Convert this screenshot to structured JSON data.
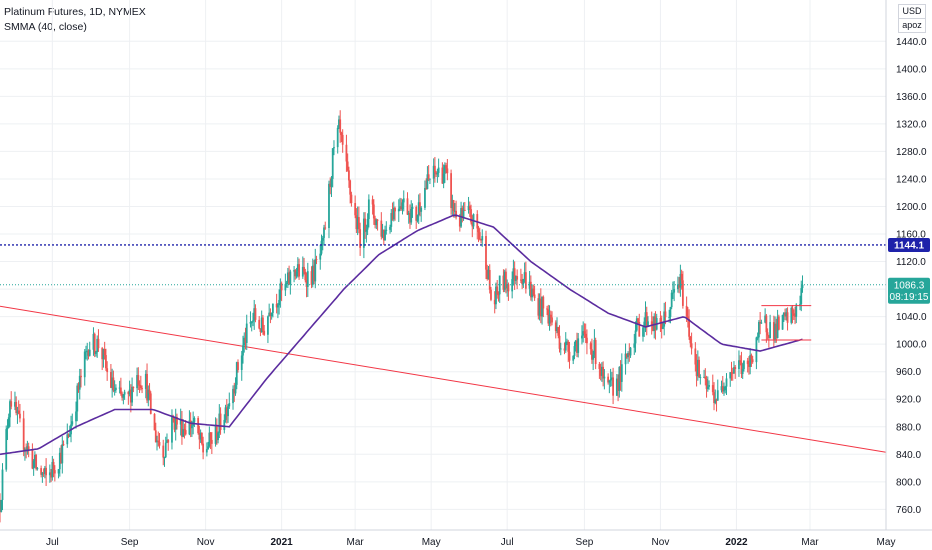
{
  "legend": {
    "symbol": "Platinum Futures, 1D, NYMEX",
    "indicator": "SMMA (40, close)"
  },
  "scale_buttons": {
    "currency": "USD",
    "mode": "apoz"
  },
  "colors": {
    "up": "#26a69a",
    "down": "#ef5350",
    "smma": "#5b2c9f",
    "trendline": "#f23645",
    "level_line": "#1e22aa",
    "last_price_line": "#26a69a",
    "grid": "#eef0f3"
  },
  "chart_data": {
    "type": "candlestick",
    "title": "Platinum Futures, 1D, NYMEX",
    "indicator_name": "SMMA (40, close)",
    "ylim": [
      730,
      1500
    ],
    "y_ticks": [
      760,
      800,
      840,
      880,
      920,
      960,
      1000,
      1040,
      1080,
      1120,
      1160,
      1200,
      1240,
      1280,
      1320,
      1360,
      1400,
      1440
    ],
    "x_tick_labels": [
      "Jul",
      "Sep",
      "Nov",
      "2021",
      "Mar",
      "May",
      "Jul",
      "Sep",
      "Nov",
      "2022",
      "Mar",
      "May"
    ],
    "x_tick_months": [
      "2020-07",
      "2020-09",
      "2020-11",
      "2021-01",
      "2021-03",
      "2021-05",
      "2021-07",
      "2021-09",
      "2021-11",
      "2022-01",
      "2022-03",
      "2022-05"
    ],
    "x_range": [
      "2020-05-20",
      "2022-05-01"
    ],
    "price_path": [
      [
        "2020-05-20",
        770
      ],
      [
        "2020-05-28",
        925
      ],
      [
        "2020-06-08",
        860
      ],
      [
        "2020-06-18",
        820
      ],
      [
        "2020-06-26",
        805
      ],
      [
        "2020-07-05",
        830
      ],
      [
        "2020-07-13",
        860
      ],
      [
        "2020-07-22",
        935
      ],
      [
        "2020-07-30",
        1000
      ],
      [
        "2020-08-08",
        1000
      ],
      [
        "2020-08-15",
        950
      ],
      [
        "2020-08-22",
        925
      ],
      [
        "2020-08-30",
        915
      ],
      [
        "2020-09-06",
        955
      ],
      [
        "2020-09-14",
        945
      ],
      [
        "2020-09-21",
        870
      ],
      [
        "2020-09-28",
        845
      ],
      [
        "2020-10-06",
        890
      ],
      [
        "2020-10-14",
        880
      ],
      [
        "2020-10-22",
        885
      ],
      [
        "2020-10-30",
        845
      ],
      [
        "2020-11-08",
        865
      ],
      [
        "2020-11-16",
        900
      ],
      [
        "2020-11-24",
        945
      ],
      [
        "2020-12-03",
        1010
      ],
      [
        "2020-12-10",
        1040
      ],
      [
        "2020-12-17",
        1020
      ],
      [
        "2020-12-24",
        1060
      ],
      [
        "2021-01-04",
        1080
      ],
      [
        "2021-01-11",
        1110
      ],
      [
        "2021-01-18",
        1100
      ],
      [
        "2021-01-26",
        1100
      ],
      [
        "2021-02-03",
        1140
      ],
      [
        "2021-02-11",
        1270
      ],
      [
        "2021-02-16",
        1310
      ],
      [
        "2021-02-22",
        1250
      ],
      [
        "2021-02-28",
        1190
      ],
      [
        "2021-03-06",
        1150
      ],
      [
        "2021-03-12",
        1200
      ],
      [
        "2021-03-18",
        1180
      ],
      [
        "2021-03-24",
        1160
      ],
      [
        "2021-03-30",
        1190
      ],
      [
        "2021-04-06",
        1210
      ],
      [
        "2021-04-12",
        1200
      ],
      [
        "2021-04-18",
        1180
      ],
      [
        "2021-04-24",
        1220
      ],
      [
        "2021-04-30",
        1240
      ],
      [
        "2021-05-06",
        1250
      ],
      [
        "2021-05-12",
        1250
      ],
      [
        "2021-05-18",
        1200
      ],
      [
        "2021-05-24",
        1180
      ],
      [
        "2021-05-30",
        1190
      ],
      [
        "2021-06-06",
        1170
      ],
      [
        "2021-06-13",
        1140
      ],
      [
        "2021-06-19",
        1050
      ],
      [
        "2021-06-26",
        1090
      ],
      [
        "2021-07-03",
        1090
      ],
      [
        "2021-07-10",
        1110
      ],
      [
        "2021-07-17",
        1090
      ],
      [
        "2021-07-24",
        1060
      ],
      [
        "2021-07-31",
        1050
      ],
      [
        "2021-08-07",
        1030
      ],
      [
        "2021-08-14",
        1000
      ],
      [
        "2021-08-21",
        990
      ],
      [
        "2021-08-28",
        1010
      ],
      [
        "2021-09-04",
        1000
      ],
      [
        "2021-09-11",
        985
      ],
      [
        "2021-09-18",
        930
      ],
      [
        "2021-09-25",
        940
      ],
      [
        "2021-10-02",
        960
      ],
      [
        "2021-10-09",
        1010
      ],
      [
        "2021-10-16",
        1030
      ],
      [
        "2021-10-23",
        1040
      ],
      [
        "2021-10-30",
        1020
      ],
      [
        "2021-11-06",
        1040
      ],
      [
        "2021-11-13",
        1080
      ],
      [
        "2021-11-17",
        1090
      ],
      [
        "2021-11-22",
        1040
      ],
      [
        "2021-11-28",
        980
      ],
      [
        "2021-12-05",
        940
      ],
      [
        "2021-12-12",
        930
      ],
      [
        "2021-12-18",
        920
      ],
      [
        "2021-12-24",
        960
      ],
      [
        "2022-01-03",
        970
      ],
      [
        "2022-01-10",
        960
      ],
      [
        "2022-01-17",
        1010
      ],
      [
        "2022-01-24",
        1030
      ],
      [
        "2022-01-31",
        1020
      ],
      [
        "2022-02-07",
        1030
      ],
      [
        "2022-02-14",
        1040
      ],
      [
        "2022-02-21",
        1060
      ],
      [
        "2022-02-23",
        1086.3
      ]
    ],
    "smma_path": [
      [
        "2020-05-20",
        840
      ],
      [
        "2020-06-20",
        848
      ],
      [
        "2020-07-20",
        880
      ],
      [
        "2020-08-20",
        905
      ],
      [
        "2020-09-20",
        905
      ],
      [
        "2020-10-20",
        885
      ],
      [
        "2020-11-20",
        880
      ],
      [
        "2020-12-20",
        950
      ],
      [
        "2021-01-20",
        1015
      ],
      [
        "2021-02-20",
        1080
      ],
      [
        "2021-03-20",
        1130
      ],
      [
        "2021-04-20",
        1165
      ],
      [
        "2021-05-20",
        1188
      ],
      [
        "2021-06-20",
        1170
      ],
      [
        "2021-07-20",
        1120
      ],
      [
        "2021-08-20",
        1080
      ],
      [
        "2021-09-20",
        1045
      ],
      [
        "2021-10-20",
        1025
      ],
      [
        "2021-11-20",
        1040
      ],
      [
        "2021-12-20",
        1000
      ],
      [
        "2022-01-20",
        990
      ],
      [
        "2022-02-23",
        1007
      ]
    ],
    "trendline": {
      "start": [
        "2020-05-20",
        1055
      ],
      "end": [
        "2022-05-01",
        843
      ]
    },
    "horizontal_level": {
      "value": 1144.1,
      "label": "1144.1"
    },
    "range_box": {
      "from": "2022-01-21",
      "to": "2022-03-02",
      "high": 1056,
      "low": 1006
    },
    "last_price": {
      "value": 1086.3,
      "label": "1086.3",
      "countdown": "08:19:15"
    }
  }
}
